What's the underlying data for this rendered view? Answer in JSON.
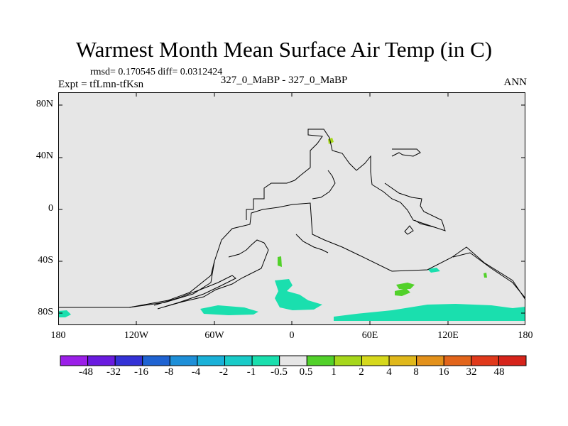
{
  "title": "Warmest Month Mean Surface Air Temp (in C)",
  "stats_text": "rmsd= 0.170545  diff= 0.0312424",
  "expt_text": "Expt = tfLmn-tfKsn",
  "center_text": "327_0_MaBP - 327_0_MaBP",
  "season_text": "ANN",
  "lat_labels": [
    "80N",
    "40N",
    "0",
    "40S",
    "80S"
  ],
  "lon_labels": [
    "180",
    "120W",
    "60W",
    "0",
    "60E",
    "120E",
    "180"
  ],
  "colorbar": {
    "labels": [
      "-48",
      "-32",
      "-16",
      "-8",
      "-4",
      "-2",
      "-1",
      "-0.5",
      "0.5",
      "1",
      "2",
      "4",
      "8",
      "16",
      "32",
      "48"
    ],
    "colors": [
      "#9b1fe8",
      "#6a1bdf",
      "#3432d6",
      "#1f63d2",
      "#1e8fd8",
      "#1ab1d8",
      "#19cbc8",
      "#1adfae",
      "#e6e6e6",
      "#52d12a",
      "#a6d71b",
      "#d6d81c",
      "#e0b81b",
      "#e3911b",
      "#e2651b",
      "#e0391b",
      "#d6241b"
    ]
  },
  "colors": {
    "land_fill": "#e6e6e6",
    "coast": "#000000",
    "teal": "#1adfae",
    "green": "#52d12a",
    "lime": "#a6d71b"
  }
}
